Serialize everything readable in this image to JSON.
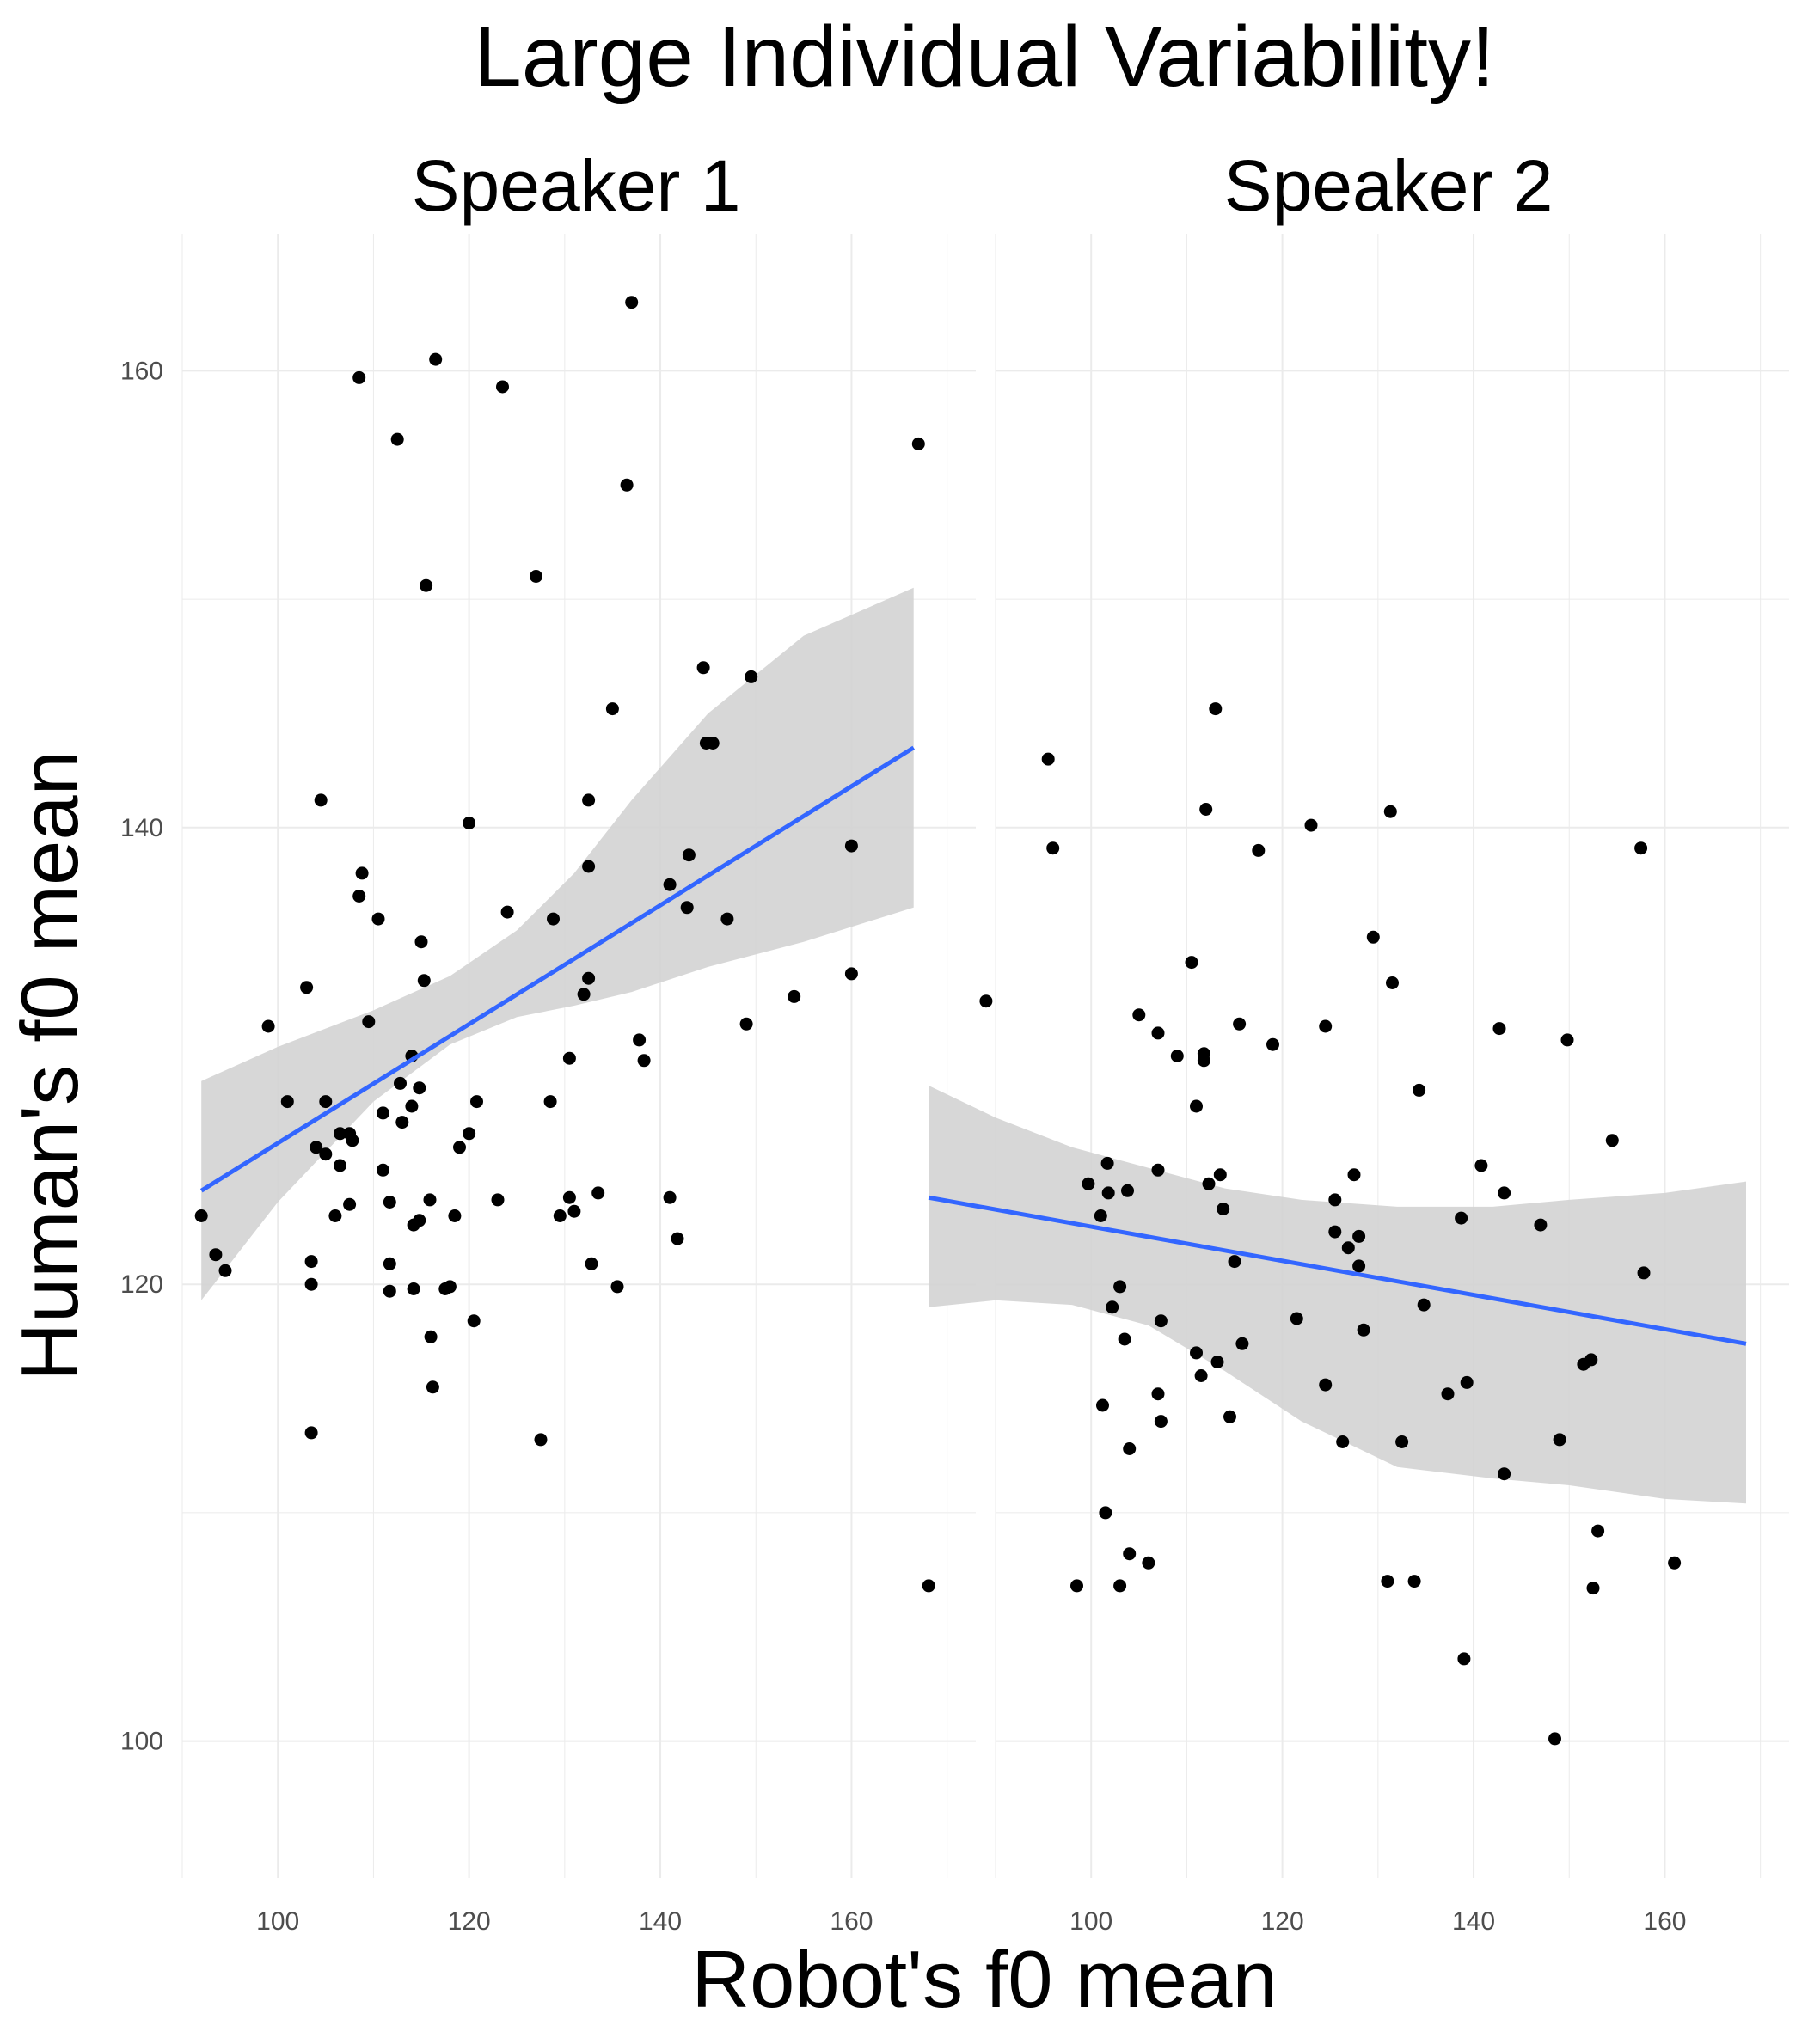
{
  "chart_data": {
    "type": "scatter",
    "title": "Large Individual Variability!",
    "xlabel": "Robot's f0 mean",
    "ylabel": "Human's f0 mean",
    "xlim": [
      90,
      173
    ],
    "ylim": [
      94,
      166
    ],
    "x_ticks": [
      100,
      120,
      140,
      160
    ],
    "y_ticks": [
      100,
      120,
      140,
      160
    ],
    "grid": true,
    "colors": {
      "points": "#000000",
      "fit_line": "#3366ff",
      "ribbon": "#d3d3d3",
      "grid": "#ebebeb"
    },
    "panels": [
      {
        "label": "Speaker 1",
        "points": [
          [
            92.0,
            123.0
          ],
          [
            93.5,
            121.3
          ],
          [
            94.5,
            120.6
          ],
          [
            99.0,
            131.3
          ],
          [
            101.0,
            128.0
          ],
          [
            103.0,
            133.0
          ],
          [
            103.5,
            121.0
          ],
          [
            103.5,
            120.0
          ],
          [
            103.5,
            113.5
          ],
          [
            104.0,
            126.0
          ],
          [
            104.5,
            141.2
          ],
          [
            105.0,
            125.7
          ],
          [
            105.0,
            128.0
          ],
          [
            106.0,
            123.0
          ],
          [
            106.5,
            125.2
          ],
          [
            106.5,
            126.6
          ],
          [
            107.5,
            126.6
          ],
          [
            107.5,
            123.5
          ],
          [
            107.8,
            126.3
          ],
          [
            108.5,
            137.0
          ],
          [
            108.5,
            159.7
          ],
          [
            108.8,
            138.0
          ],
          [
            109.5,
            131.5
          ],
          [
            110.5,
            136.0
          ],
          [
            111.0,
            125.0
          ],
          [
            111.0,
            127.5
          ],
          [
            111.7,
            123.6
          ],
          [
            111.7,
            120.9
          ],
          [
            111.7,
            119.7
          ],
          [
            112.5,
            157.0
          ],
          [
            112.8,
            128.8
          ],
          [
            113.0,
            127.1
          ],
          [
            114.0,
            130.0
          ],
          [
            114.0,
            127.8
          ],
          [
            114.2,
            122.6
          ],
          [
            114.2,
            119.8
          ],
          [
            114.8,
            122.8
          ],
          [
            114.8,
            128.6
          ],
          [
            115.0,
            135.0
          ],
          [
            115.3,
            133.3
          ],
          [
            115.5,
            150.6
          ],
          [
            115.9,
            123.7
          ],
          [
            116.0,
            117.7
          ],
          [
            116.2,
            115.5
          ],
          [
            116.5,
            160.5
          ],
          [
            117.5,
            119.8
          ],
          [
            118.0,
            119.9
          ],
          [
            118.5,
            123.0
          ],
          [
            119.0,
            126.0
          ],
          [
            120.0,
            140.2
          ],
          [
            120.0,
            126.6
          ],
          [
            120.5,
            118.4
          ],
          [
            120.8,
            128.0
          ],
          [
            123.0,
            123.7
          ],
          [
            123.5,
            159.3
          ],
          [
            124.0,
            136.3
          ],
          [
            127.0,
            151.0
          ],
          [
            127.5,
            113.2
          ],
          [
            128.5,
            128.0
          ],
          [
            128.8,
            136.0
          ],
          [
            129.5,
            123.0
          ],
          [
            130.5,
            129.9
          ],
          [
            130.5,
            123.8
          ],
          [
            131.0,
            123.2
          ],
          [
            132.0,
            132.7
          ],
          [
            132.5,
            141.2
          ],
          [
            132.5,
            138.3
          ],
          [
            132.5,
            133.4
          ],
          [
            132.8,
            120.9
          ],
          [
            133.5,
            124.0
          ],
          [
            135.0,
            145.2
          ],
          [
            135.5,
            119.9
          ],
          [
            136.5,
            155.0
          ],
          [
            137.0,
            163.0
          ],
          [
            137.8,
            130.7
          ],
          [
            138.3,
            129.8
          ],
          [
            141.0,
            137.5
          ],
          [
            141.0,
            123.8
          ],
          [
            141.8,
            122.0
          ],
          [
            142.8,
            136.5
          ],
          [
            143.0,
            138.8
          ],
          [
            144.5,
            147.0
          ],
          [
            144.8,
            143.7
          ],
          [
            145.5,
            143.7
          ],
          [
            147.0,
            136.0
          ],
          [
            149.0,
            131.4
          ],
          [
            149.5,
            146.6
          ],
          [
            154.0,
            132.6
          ],
          [
            160.0,
            139.2
          ],
          [
            160.0,
            133.6
          ],
          [
            167.0,
            156.8
          ]
        ],
        "fit": {
          "x0": 92.0,
          "y0": 124.1,
          "x1": 166.5,
          "y1": 143.5
        },
        "ribbon": [
          [
            92.0,
            128.9,
            119.3
          ],
          [
            100.0,
            130.4,
            123.6
          ],
          [
            110.0,
            132.0,
            128.0
          ],
          [
            118.0,
            133.5,
            130.5
          ],
          [
            125.0,
            135.5,
            131.7
          ],
          [
            131.0,
            138.0,
            132.2
          ],
          [
            137.0,
            141.2,
            132.8
          ],
          [
            145.0,
            145.0,
            133.9
          ],
          [
            155.0,
            148.4,
            135.0
          ],
          [
            166.5,
            150.5,
            136.5
          ]
        ]
      },
      {
        "label": "Speaker 2",
        "points": [
          [
            83.0,
            106.8
          ],
          [
            89.0,
            132.4
          ],
          [
            95.5,
            143.0
          ],
          [
            96.0,
            139.1
          ],
          [
            98.5,
            106.8
          ],
          [
            99.7,
            124.4
          ],
          [
            101.0,
            123.0
          ],
          [
            101.2,
            114.7
          ],
          [
            101.5,
            110.0
          ],
          [
            101.7,
            125.3
          ],
          [
            101.8,
            124.0
          ],
          [
            102.2,
            119.0
          ],
          [
            103.0,
            106.8
          ],
          [
            103.0,
            119.9
          ],
          [
            103.5,
            117.6
          ],
          [
            103.8,
            124.1
          ],
          [
            104.0,
            112.8
          ],
          [
            104.0,
            108.2
          ],
          [
            105.0,
            131.8
          ],
          [
            106.0,
            107.8
          ],
          [
            107.0,
            131.0
          ],
          [
            107.0,
            125.0
          ],
          [
            107.0,
            115.2
          ],
          [
            107.3,
            118.4
          ],
          [
            107.3,
            114.0
          ],
          [
            109.0,
            130.0
          ],
          [
            110.5,
            134.1
          ],
          [
            111.0,
            127.8
          ],
          [
            111.0,
            117.0
          ],
          [
            111.5,
            116.0
          ],
          [
            111.8,
            130.1
          ],
          [
            111.8,
            129.8
          ],
          [
            112.0,
            140.8
          ],
          [
            112.3,
            124.4
          ],
          [
            113.0,
            145.2
          ],
          [
            113.2,
            116.6
          ],
          [
            113.5,
            124.8
          ],
          [
            113.8,
            123.3
          ],
          [
            114.5,
            114.2
          ],
          [
            115.0,
            121.0
          ],
          [
            115.5,
            131.4
          ],
          [
            115.8,
            117.4
          ],
          [
            117.5,
            139.0
          ],
          [
            119.0,
            130.5
          ],
          [
            121.5,
            118.5
          ],
          [
            123.0,
            140.1
          ],
          [
            124.5,
            115.6
          ],
          [
            124.5,
            131.3
          ],
          [
            125.5,
            123.7
          ],
          [
            125.5,
            122.3
          ],
          [
            126.3,
            113.1
          ],
          [
            126.9,
            121.6
          ],
          [
            127.5,
            124.8
          ],
          [
            128.0,
            120.8
          ],
          [
            128.0,
            122.1
          ],
          [
            128.5,
            118.0
          ],
          [
            129.5,
            135.2
          ],
          [
            131.0,
            107.0
          ],
          [
            131.3,
            140.7
          ],
          [
            131.5,
            133.2
          ],
          [
            132.5,
            113.1
          ],
          [
            133.8,
            107.0
          ],
          [
            134.3,
            128.5
          ],
          [
            134.8,
            119.1
          ],
          [
            137.3,
            115.2
          ],
          [
            138.7,
            122.9
          ],
          [
            139.0,
            103.6
          ],
          [
            139.3,
            115.7
          ],
          [
            140.8,
            125.2
          ],
          [
            142.7,
            131.2
          ],
          [
            143.2,
            111.7
          ],
          [
            143.2,
            124.0
          ],
          [
            147.0,
            122.6
          ],
          [
            148.5,
            100.1
          ],
          [
            149.0,
            113.2
          ],
          [
            149.8,
            130.7
          ],
          [
            151.5,
            116.5
          ],
          [
            152.3,
            116.7
          ],
          [
            152.5,
            106.7
          ],
          [
            153.0,
            109.2
          ],
          [
            154.5,
            126.3
          ],
          [
            157.5,
            139.1
          ],
          [
            157.8,
            120.5
          ],
          [
            161.0,
            107.8
          ]
        ],
        "fit": {
          "x0": 83.0,
          "y0": 123.8,
          "x1": 168.5,
          "y1": 117.4
        },
        "ribbon": [
          [
            83.0,
            128.7,
            119.0
          ],
          [
            90.0,
            127.3,
            119.3
          ],
          [
            98.0,
            126.0,
            119.1
          ],
          [
            106.0,
            125.1,
            118.2
          ],
          [
            114.0,
            124.2,
            116.2
          ],
          [
            122.0,
            123.7,
            114.0
          ],
          [
            132.0,
            123.4,
            112.0
          ],
          [
            142.0,
            123.4,
            111.5
          ],
          [
            150.0,
            123.7,
            111.2
          ],
          [
            160.0,
            124.0,
            110.6
          ],
          [
            168.5,
            124.5,
            110.4
          ]
        ]
      }
    ]
  }
}
